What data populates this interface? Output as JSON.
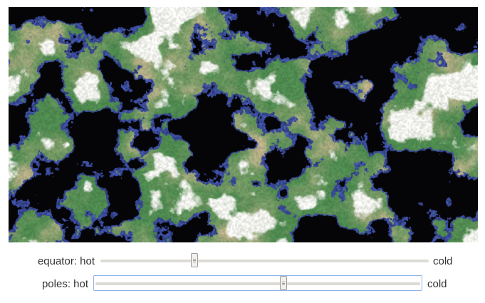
{
  "map": {
    "palette": {
      "ocean": "#050507",
      "coast": "#4b61c9",
      "lowland": "#4f8b50",
      "highland": "#a6ad7f",
      "desert": "#c5b48e",
      "snow": "#f3f4ef"
    }
  },
  "controls": {
    "equator": {
      "label_left": "equator: hot",
      "label_right": "cold",
      "value": 0.28
    },
    "poles": {
      "label_left": "poles: hot",
      "label_right": "cold",
      "value": 0.58
    }
  }
}
